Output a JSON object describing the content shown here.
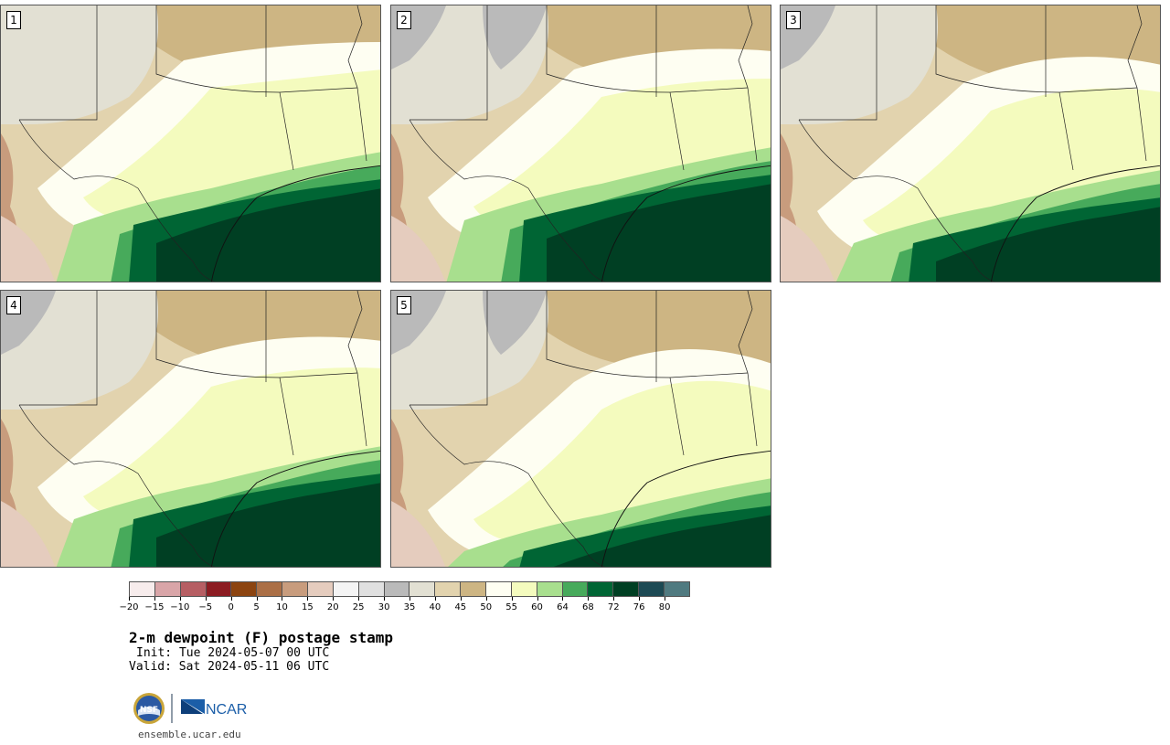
{
  "panels": [
    {
      "label": "1"
    },
    {
      "label": "2"
    },
    {
      "label": "3"
    },
    {
      "label": "4"
    },
    {
      "label": "5"
    }
  ],
  "colorbar": {
    "colors": [
      "#f7ecec",
      "#d9a5a8",
      "#b65e63",
      "#8c1c22",
      "#8c4410",
      "#ab6f46",
      "#c89c7d",
      "#e5ccbe",
      "#f4f4f4",
      "#e0e0e0",
      "#bababa",
      "#e2e0d3",
      "#e2d3ae",
      "#cdb583",
      "#fefef2",
      "#f4fbbe",
      "#a8df8e",
      "#47aa5b",
      "#006534",
      "#003f23",
      "#1d4a54",
      "#507a80"
    ],
    "tick_labels": [
      "−20",
      "−15",
      "−10",
      "−5",
      "0",
      "5",
      "10",
      "15",
      "20",
      "25",
      "30",
      "35",
      "40",
      "45",
      "50",
      "55",
      "60",
      "64",
      "68",
      "72",
      "76",
      "80"
    ]
  },
  "title": "2-m dewpoint (F) postage stamp",
  "init_text": "Init: Tue 2024-05-07 00 UTC",
  "valid_text": "Valid: Sat 2024-05-11 06 UTC",
  "logos": {
    "nsf": "NSF",
    "ncar": "NCAR"
  },
  "url": "ensemble.ucar.edu"
}
